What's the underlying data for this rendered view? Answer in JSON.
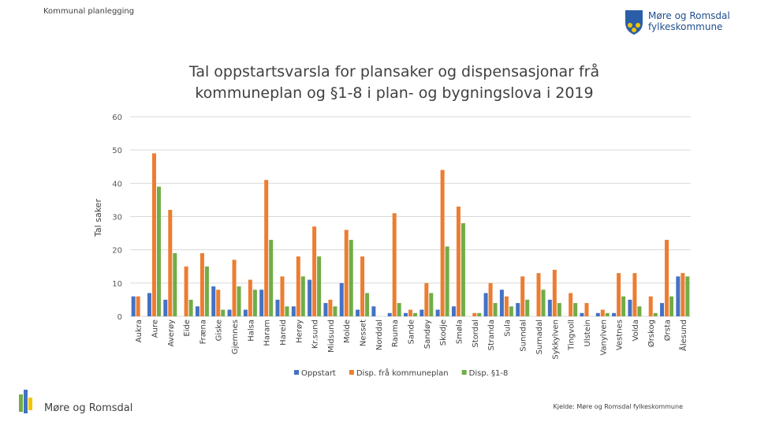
{
  "header": {
    "section": "Kommunal planlegging",
    "logo_lines": [
      "Møre og Romsdal",
      "fylkeskommune"
    ]
  },
  "footer": {
    "brand": "Møre og Romsdal",
    "source": "Kjelde: Møre og Romsdal fylkeskommune"
  },
  "chart_data": {
    "type": "bar",
    "title": "Tal oppstartsvarsla for plansaker og dispensasjonar frå kommuneplan og §1-8 i plan- og bygningslova i 2019",
    "y_label": "Tal saker",
    "categories": [
      "Aukra",
      "Aure",
      "Averøy",
      "Eide",
      "Fræna",
      "Giske",
      "Gjemnes",
      "Halsa",
      "Haram",
      "Hareid",
      "Herøy",
      "Kr.sund",
      "Midsund",
      "Molde",
      "Nesset",
      "Norddal",
      "Rauma",
      "Sande",
      "Sandøy",
      "Skodje",
      "Smøla",
      "Stordal",
      "Stranda",
      "Sula",
      "Sunndal",
      "Surnadal",
      "Sykkylven",
      "Tingvoll",
      "Ulstein",
      "Vanylven",
      "Vestnes",
      "Volda",
      "Ørskog",
      "Ørsta",
      "Ålesund"
    ],
    "series": [
      {
        "name": "Oppstart",
        "color": "#4472c4",
        "values": [
          6,
          7,
          5,
          0,
          3,
          9,
          2,
          2,
          8,
          5,
          3,
          11,
          4,
          10,
          2,
          3,
          1,
          1,
          2,
          2,
          3,
          0,
          7,
          8,
          4,
          0,
          5,
          0,
          1,
          1,
          1,
          5,
          0,
          4,
          12
        ]
      },
      {
        "name": "Disp. frå kommuneplan",
        "color": "#ed7d31",
        "values": [
          6,
          49,
          32,
          15,
          19,
          8,
          17,
          11,
          41,
          12,
          18,
          27,
          5,
          26,
          18,
          0,
          31,
          2,
          10,
          44,
          33,
          1,
          10,
          6,
          12,
          13,
          14,
          7,
          4,
          2,
          13,
          13,
          6,
          23,
          13
        ]
      },
      {
        "name": "Disp. §1-8",
        "color": "#70ad47",
        "values": [
          0,
          39,
          19,
          5,
          15,
          2,
          9,
          8,
          23,
          3,
          12,
          18,
          3,
          23,
          7,
          0,
          4,
          1,
          7,
          21,
          28,
          1,
          4,
          3,
          5,
          8,
          4,
          4,
          0,
          1,
          6,
          3,
          1,
          6,
          12
        ]
      }
    ],
    "ylim": [
      0,
      60
    ],
    "yticks": [
      0,
      10,
      20,
      30,
      40,
      50,
      60
    ],
    "grid": true,
    "legend": "bottom"
  }
}
